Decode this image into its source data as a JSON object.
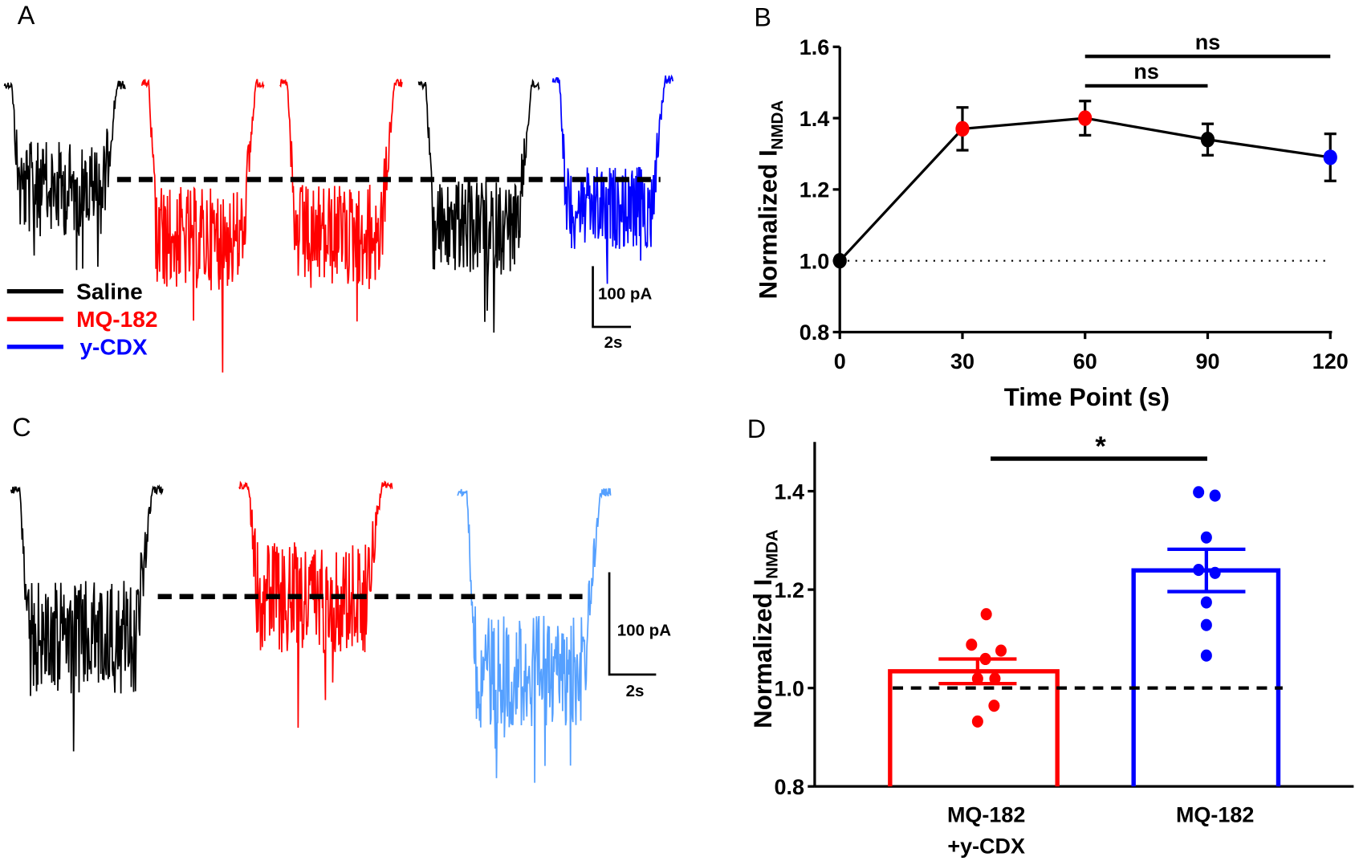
{
  "panels": {
    "A": {
      "letter": "A",
      "legend": [
        {
          "label": "Saline",
          "color": "#000000"
        },
        {
          "label": "MQ-182",
          "color": "#ff0000"
        },
        {
          "label": "y-CDX",
          "color": "#0000ff"
        }
      ],
      "trace_colors": [
        "#000000",
        "#ff0000",
        "#ff0000",
        "#000000",
        "#0000ff"
      ],
      "scale_current": "100 pA",
      "scale_time": "2s"
    },
    "C": {
      "letter": "C",
      "trace_colors": [
        "#000000",
        "#ff0000",
        "#55a0ff"
      ],
      "scale_current": "100 pA",
      "scale_time": "2s"
    }
  },
  "chart_data": [
    {
      "panel": "B",
      "type": "line",
      "ylabel_main": "Normalized I",
      "ylabel_sub": "NMDA",
      "xlabel": "Time Point (s)",
      "x": [
        0,
        30,
        60,
        90,
        120
      ],
      "xticks": [
        "0",
        "30",
        "60",
        "90",
        "120"
      ],
      "y": [
        1.0,
        1.37,
        1.4,
        1.34,
        1.29
      ],
      "error": [
        0,
        0.06,
        0.048,
        0.044,
        0.066
      ],
      "point_colors": [
        "#000000",
        "#ff0000",
        "#ff0000",
        "#000000",
        "#0000ff"
      ],
      "ylim": [
        0.8,
        1.6
      ],
      "yticks": [
        "0.8",
        "1.0",
        "1.2",
        "1.4",
        "1.6"
      ],
      "reference_line": 1.0,
      "comparisons": [
        {
          "from": 60,
          "to": 120,
          "label": "ns"
        },
        {
          "from": 60,
          "to": 90,
          "label": "ns"
        }
      ]
    },
    {
      "panel": "D",
      "type": "bar",
      "ylabel_main": "Normalized I",
      "ylabel_sub": "NMDA",
      "categories": [
        {
          "line1": "MQ-182",
          "line2": "+y-CDX"
        },
        {
          "line1": "MQ-182",
          "line2": ""
        }
      ],
      "values": [
        1.034,
        1.239
      ],
      "sem": [
        0.025,
        0.043
      ],
      "colors": [
        "#ff0000",
        "#0000ff"
      ],
      "points": [
        [
          1.15,
          1.088,
          1.076,
          1.059,
          1.019,
          1.019,
          0.964,
          0.932
        ],
        [
          1.398,
          1.391,
          1.306,
          1.24,
          1.234,
          1.174,
          1.128,
          1.066
        ]
      ],
      "ylim": [
        0.8,
        1.5
      ],
      "yticks": [
        "0.8",
        "1.0",
        "1.2",
        "1.4"
      ],
      "reference_line": 1.0,
      "comparisons": [
        {
          "from": 0,
          "to": 1,
          "label": "*"
        }
      ]
    }
  ]
}
